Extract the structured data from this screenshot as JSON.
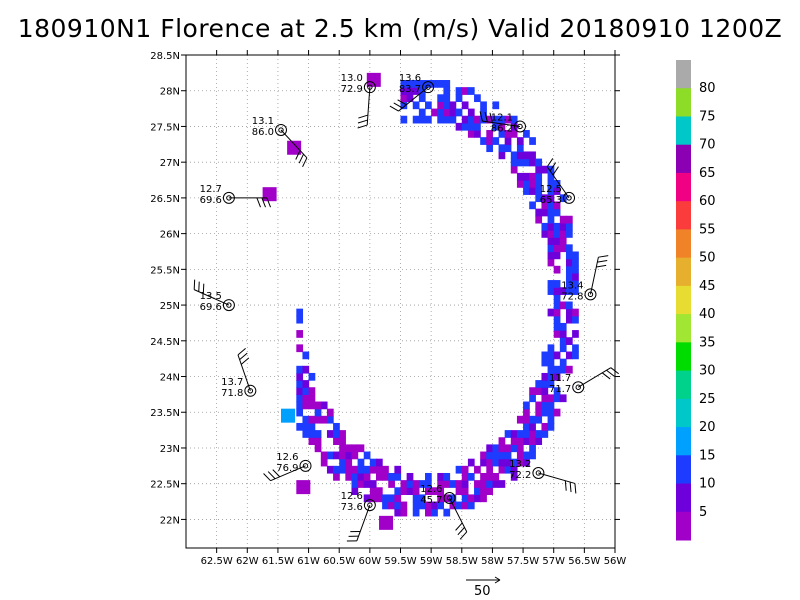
{
  "title": "180910N1 Florence at 2.5 km (m/s) Valid 20180910 1200Z",
  "chart_data": {
    "type": "heatmap",
    "title": "180910N1 Florence at 2.5 km (m/s) Valid 20180910 1200Z",
    "xlabel": "",
    "ylabel": "",
    "xlim": [
      -63.0,
      -56.0
    ],
    "ylim": [
      21.6,
      28.5
    ],
    "x_ticks": [
      "62.5W",
      "62W",
      "61.5W",
      "61W",
      "60.5W",
      "60W",
      "59.5W",
      "59W",
      "58.5W",
      "58W",
      "57.5W",
      "57W",
      "56.5W",
      "56W"
    ],
    "y_ticks": [
      "22N",
      "22.5N",
      "23N",
      "23.5N",
      "24N",
      "24.5N",
      "25N",
      "25.5N",
      "26N",
      "26.5N",
      "27N",
      "27.5N",
      "28N",
      "28.5N"
    ],
    "grid": true,
    "colorbar": {
      "labels": [
        "5",
        "10",
        "15",
        "20",
        "25",
        "30",
        "35",
        "40",
        "45",
        "50",
        "55",
        "60",
        "65",
        "70",
        "75",
        "80"
      ],
      "colors": [
        "#a000c8",
        "#6e00dc",
        "#1e3cff",
        "#00a0ff",
        "#00c8c8",
        "#00d28c",
        "#00dc00",
        "#a0e632",
        "#e6dc32",
        "#e6af2d",
        "#f08228",
        "#fa3c3c",
        "#f00082",
        "#8c00b4",
        "#00c8c8",
        "#8cdc28",
        "#aaaaaa"
      ]
    },
    "dropsondes": [
      {
        "lon": -62.3,
        "lat": 26.5,
        "label_top": "12.7",
        "label_bottom": "69.6"
      },
      {
        "lon": -61.45,
        "lat": 27.45,
        "label_top": "13.1",
        "label_bottom": "86.0"
      },
      {
        "lon": -60.0,
        "lat": 28.05,
        "label_top": "13.0",
        "label_bottom": "72.9"
      },
      {
        "lon": -59.05,
        "lat": 28.05,
        "label_top": "13.6",
        "label_bottom": "83.7"
      },
      {
        "lon": -57.55,
        "lat": 27.5,
        "label_top": "12.1",
        "label_bottom": "86.2"
      },
      {
        "lon": -56.75,
        "lat": 26.5,
        "label_top": "12.5",
        "label_bottom": "65.3"
      },
      {
        "lon": -56.4,
        "lat": 25.15,
        "label_top": "13.4",
        "label_bottom": "72.8"
      },
      {
        "lon": -56.6,
        "lat": 23.85,
        "label_top": "11.7",
        "label_bottom": "71.7"
      },
      {
        "lon": -57.25,
        "lat": 22.65,
        "label_top": "13.2",
        "label_bottom": "72.2"
      },
      {
        "lon": -58.7,
        "lat": 22.3,
        "label_top": "12.6",
        "label_bottom": "45.7"
      },
      {
        "lon": -60.0,
        "lat": 22.2,
        "label_top": "12.6",
        "label_bottom": "73.6"
      },
      {
        "lon": -61.05,
        "lat": 22.75,
        "label_top": "12.6",
        "label_bottom": "76.9"
      },
      {
        "lon": -62.3,
        "lat": 25.0,
        "label_top": "13.5",
        "label_bottom": "69.6"
      },
      {
        "lon": -61.95,
        "lat": 23.8,
        "label_top": "13.7",
        "label_bottom": "71.8"
      }
    ],
    "scale_vector": {
      "label": "50"
    }
  }
}
